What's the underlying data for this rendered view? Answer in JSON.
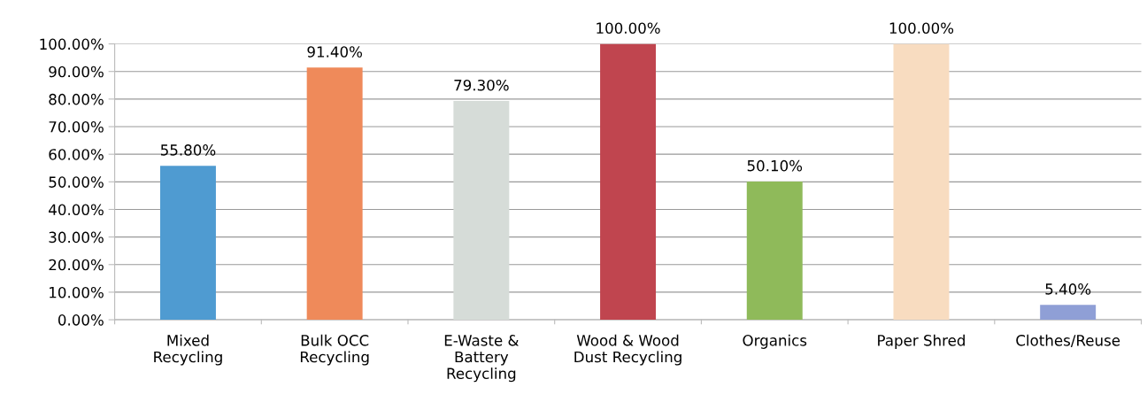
{
  "chart_data": {
    "type": "bar",
    "categories": [
      "Mixed\nRecycling",
      "Bulk OCC\nRecycling",
      "E-Waste &\nBattery\nRecycling",
      "Wood & Wood\nDust Recycling",
      "Organics",
      "Paper Shred",
      "Clothes/Reuse"
    ],
    "values": [
      55.8,
      91.4,
      79.3,
      100,
      50.1,
      100,
      5.4
    ],
    "value_labels": [
      "55.80%",
      "91.40%",
      "79.30%",
      "100.00%",
      "50.10%",
      "100.00%",
      "5.40%"
    ],
    "colors": [
      "#4f9bd1",
      "#ef8a5a",
      "#d6dcd8",
      "#c0454f",
      "#8fba5a",
      "#f8dcc0",
      "#8f9fd6"
    ],
    "ylim": [
      0,
      100
    ],
    "yticks": [
      {
        "value": 0,
        "label": "0.00%"
      },
      {
        "value": 10,
        "label": "10.00%"
      },
      {
        "value": 20,
        "label": "20.00%"
      },
      {
        "value": 30,
        "label": "30.00%"
      },
      {
        "value": 40,
        "label": "40.00%"
      },
      {
        "value": 50,
        "label": "50.00%"
      },
      {
        "value": 60,
        "label": "60.00%"
      },
      {
        "value": 70,
        "label": "70.00%"
      },
      {
        "value": 80,
        "label": "80.00%"
      },
      {
        "value": 90,
        "label": "90.00%"
      },
      {
        "value": 100,
        "label": "100.00%"
      }
    ],
    "grid": "y"
  }
}
